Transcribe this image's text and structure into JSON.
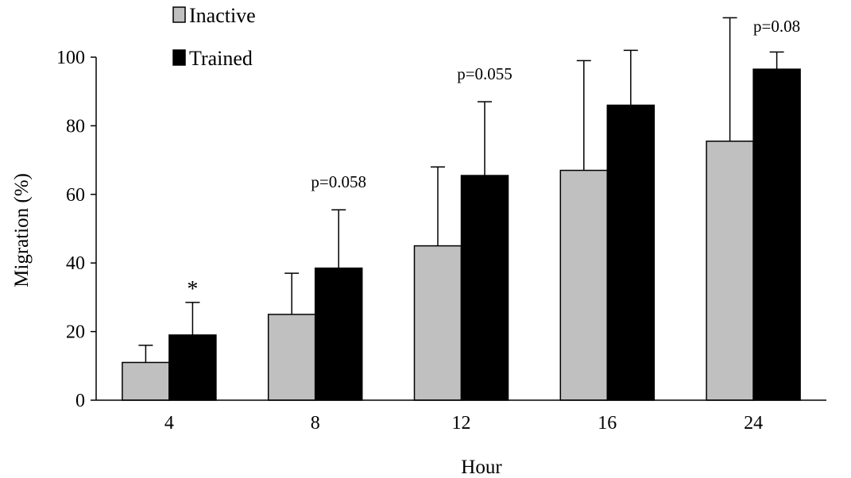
{
  "chart_data": {
    "type": "bar",
    "title": "",
    "xlabel": "Hour",
    "ylabel": "Migration (%)",
    "categories": [
      "4",
      "8",
      "12",
      "16",
      "24"
    ],
    "ylim": [
      0,
      100
    ],
    "yticks": [
      "0",
      "20",
      "40",
      "60",
      "80",
      "100"
    ],
    "grid": false,
    "legend_position": "top-left",
    "series": [
      {
        "name": "Inactive",
        "color": "#c0c0c0",
        "values": [
          11,
          25,
          45,
          67,
          75.5
        ],
        "errors": [
          5,
          12,
          23,
          32,
          36
        ]
      },
      {
        "name": "Trained",
        "color": "#000000",
        "values": [
          19,
          38.5,
          65.5,
          86,
          96.5
        ],
        "errors": [
          9.5,
          17,
          21.5,
          16,
          5
        ]
      }
    ],
    "annotations": [
      {
        "category": "4",
        "text": "*"
      },
      {
        "category": "8",
        "text": "p=0.058"
      },
      {
        "category": "12",
        "text": "p=0.055"
      },
      {
        "category": "24",
        "text": "p=0.08"
      }
    ]
  }
}
